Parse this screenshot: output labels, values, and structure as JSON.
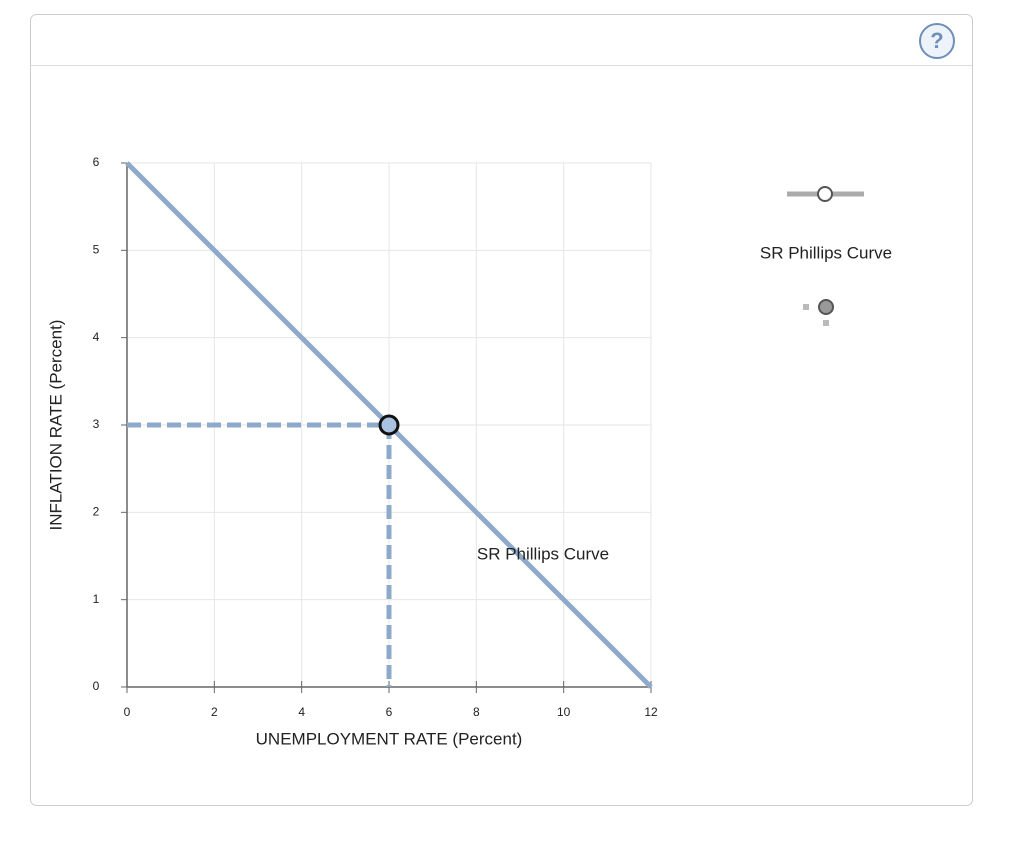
{
  "toolbar": {
    "help": "?"
  },
  "chart_data": {
    "type": "line",
    "xlabel": "UNEMPLOYMENT RATE (Percent)",
    "ylabel": "INFLATION RATE (Percent)",
    "series": [
      {
        "name": "SR Phillips Curve",
        "color": "#8eaacb",
        "x": [
          0,
          12
        ],
        "values": [
          6,
          0
        ]
      }
    ],
    "points": [
      {
        "x": 6,
        "y": 3
      }
    ],
    "annotation": "SR Phillips Curve",
    "xlim": [
      0,
      12
    ],
    "xticks": [
      0,
      2,
      4,
      6,
      8,
      10,
      12
    ],
    "ylim": [
      0,
      6
    ],
    "yticks": [
      0,
      1,
      2,
      3,
      4,
      5,
      6
    ],
    "grid": true
  }
}
